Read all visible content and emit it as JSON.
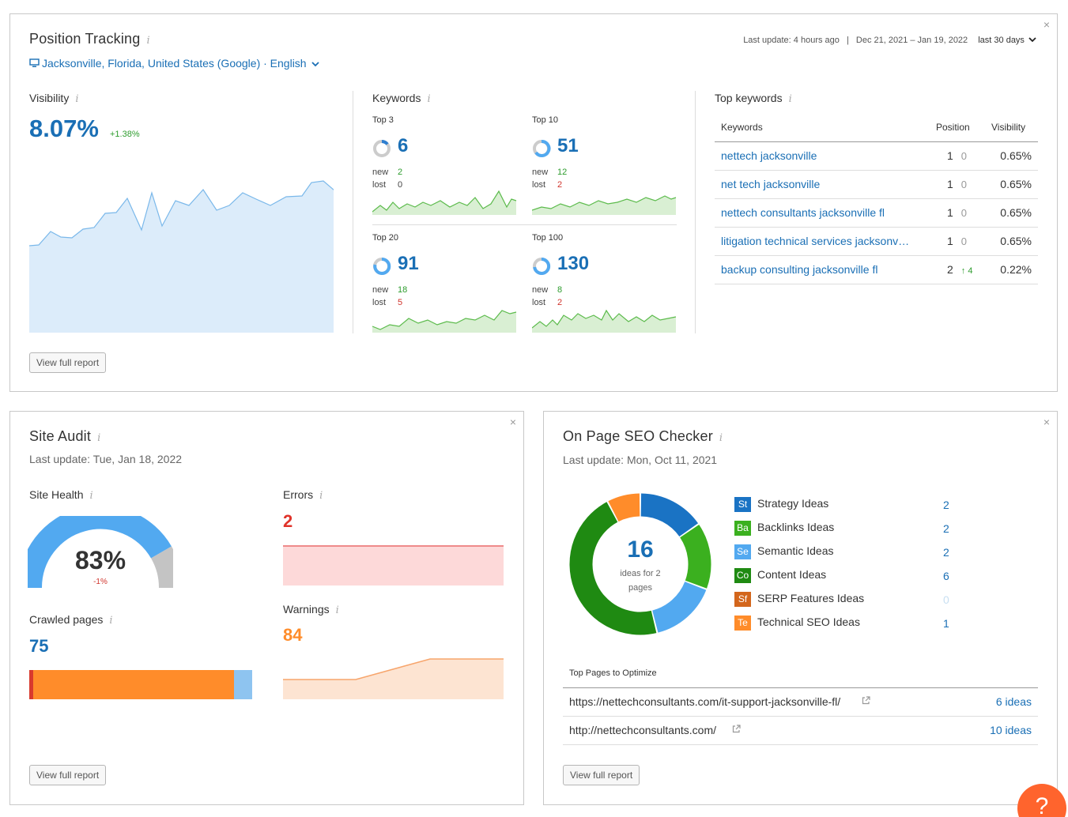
{
  "position_tracking": {
    "title": "Position Tracking",
    "location": "Jacksonville, Florida, United States (Google) · English",
    "last_update": "Last update: 4 hours ago",
    "separator": "|",
    "date_range": "Dec 21, 2021 – Jan 19, 2022",
    "period": "last 30 days",
    "visibility": {
      "label": "Visibility",
      "value": "8.07%",
      "change": "+1.38%"
    },
    "keywords": {
      "label": "Keywords",
      "blocks": [
        {
          "title": "Top 3",
          "value": "6",
          "new_label": "new",
          "new": "2",
          "lost_label": "lost",
          "lost": "0"
        },
        {
          "title": "Top 10",
          "value": "51",
          "new_label": "new",
          "new": "12",
          "lost_label": "lost",
          "lost": "2"
        },
        {
          "title": "Top 20",
          "value": "91",
          "new_label": "new",
          "new": "18",
          "lost_label": "lost",
          "lost": "5"
        },
        {
          "title": "Top 100",
          "value": "130",
          "new_label": "new",
          "new": "8",
          "lost_label": "lost",
          "lost": "2"
        }
      ]
    },
    "top_keywords": {
      "label": "Top keywords",
      "headers": [
        "Keywords",
        "Position",
        "Visibility"
      ],
      "rows": [
        {
          "keyword": "nettech jacksonville",
          "position": "1",
          "diff": "0",
          "visibility": "0.65%"
        },
        {
          "keyword": "net tech jacksonville",
          "position": "1",
          "diff": "0",
          "visibility": "0.65%"
        },
        {
          "keyword": "nettech consultants jacksonville fl",
          "position": "1",
          "diff": "0",
          "visibility": "0.65%"
        },
        {
          "keyword": "litigation technical services jacksonv…",
          "position": "1",
          "diff": "0",
          "visibility": "0.65%"
        },
        {
          "keyword": "backup consulting jacksonville fl",
          "position": "2",
          "diff": "↑ 4",
          "visibility": "0.22%"
        }
      ]
    },
    "button": "View full report"
  },
  "site_audit": {
    "title": "Site Audit",
    "last_update": "Last update: Tue, Jan 18, 2022",
    "site_health": {
      "label": "Site Health",
      "value": "83%",
      "change": "-1%"
    },
    "errors": {
      "label": "Errors",
      "value": "2"
    },
    "warnings": {
      "label": "Warnings",
      "value": "84"
    },
    "crawled": {
      "label": "Crawled pages",
      "value": "75"
    },
    "button": "View full report"
  },
  "seo_checker": {
    "title": "On Page SEO Checker",
    "last_update": "Last update: Mon, Oct 11, 2021",
    "total": "16",
    "total_caption": "ideas for 2 pages",
    "ideas": [
      {
        "abbr": "St",
        "label": "Strategy Ideas",
        "count": "2",
        "color": "#1a73c4"
      },
      {
        "abbr": "Ba",
        "label": "Backlinks Ideas",
        "count": "2",
        "color": "#3bb01f"
      },
      {
        "abbr": "Se",
        "label": "Semantic Ideas",
        "count": "2",
        "color": "#52a9f0"
      },
      {
        "abbr": "Co",
        "label": "Content Ideas",
        "count": "6",
        "color": "#1f8a12"
      },
      {
        "abbr": "Sf",
        "label": "SERP Features Ideas",
        "count": "0",
        "color": "#d3661c"
      },
      {
        "abbr": "Te",
        "label": "Technical SEO Ideas",
        "count": "1",
        "color": "#ff8c2a"
      }
    ],
    "pages_label": "Top Pages to Optimize",
    "pages": [
      {
        "url": "https://nettechconsultants.com/it-support-jacksonville-fl/",
        "ideas": "6 ideas"
      },
      {
        "url": "http://nettechconsultants.com/",
        "ideas": "10 ideas"
      }
    ],
    "button": "View full report"
  },
  "help": "?"
}
